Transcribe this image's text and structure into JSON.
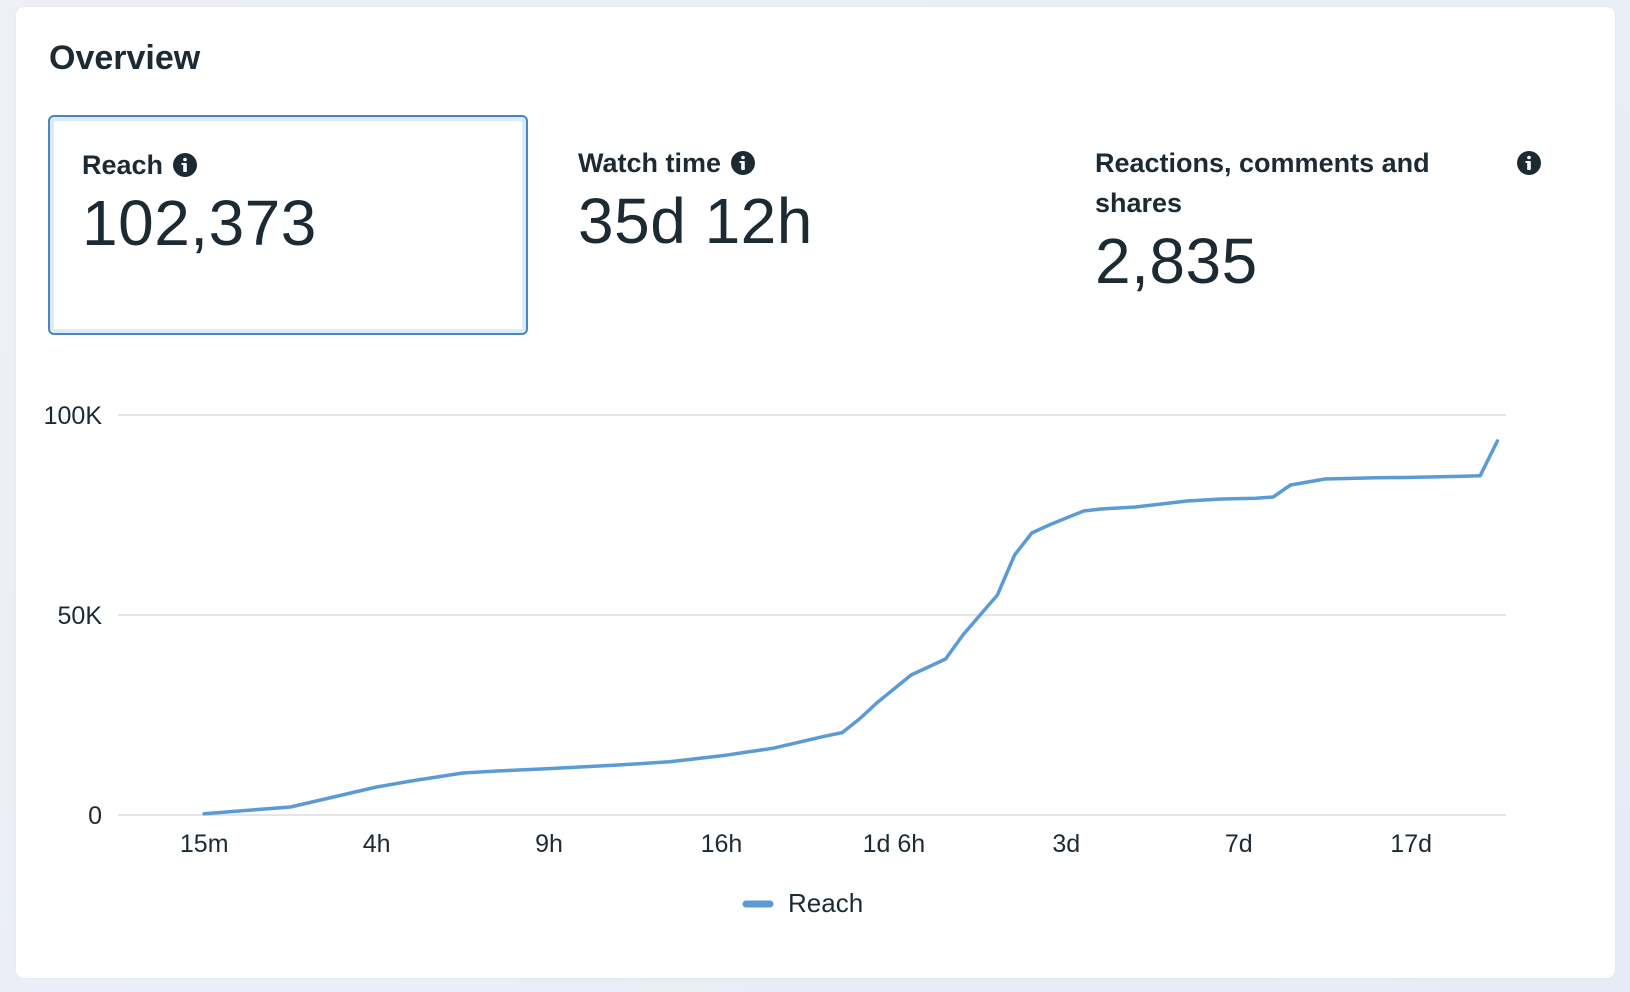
{
  "overview": {
    "title": "Overview",
    "metrics": [
      {
        "label": "Reach",
        "value": "102,373",
        "selected": true
      },
      {
        "label": "Watch time",
        "value": "35d 12h",
        "selected": false
      },
      {
        "label": "Reactions, comments and shares",
        "value": "2,835",
        "selected": false
      }
    ]
  },
  "colors": {
    "series": "#5b9bd5",
    "grid": "#dadde1",
    "selected_border": "#4a86c5"
  },
  "chart_data": {
    "type": "line",
    "title": "",
    "xlabel": "",
    "ylabel": "",
    "ylim": [
      0,
      100000
    ],
    "y_ticks": [
      {
        "value": 0,
        "label": "0"
      },
      {
        "value": 50000,
        "label": "50K"
      },
      {
        "value": 100000,
        "label": "100K"
      }
    ],
    "x_range": [
      -0.5,
      7.55
    ],
    "x_ticks": [
      {
        "pos": 0,
        "label": "15m"
      },
      {
        "pos": 1,
        "label": "4h"
      },
      {
        "pos": 2,
        "label": "9h"
      },
      {
        "pos": 3,
        "label": "16h"
      },
      {
        "pos": 4,
        "label": "1d 6h"
      },
      {
        "pos": 5,
        "label": "3d"
      },
      {
        "pos": 6,
        "label": "7d"
      },
      {
        "pos": 7,
        "label": "17d"
      }
    ],
    "legend": "bottom-center",
    "grid": true,
    "series": [
      {
        "name": "Reach",
        "x": [
          0,
          0.2,
          0.5,
          0.7,
          1.0,
          1.2,
          1.5,
          1.7,
          2.0,
          2.4,
          2.7,
          3.0,
          3.3,
          3.5,
          3.6,
          3.7,
          3.8,
          3.9,
          4.0,
          4.1,
          4.3,
          4.4,
          4.5,
          4.6,
          4.7,
          4.8,
          4.9,
          5.1,
          5.2,
          5.4,
          5.6,
          5.7,
          5.9,
          6.1,
          6.2,
          6.3,
          6.5,
          6.8,
          7.0,
          7.3,
          7.4,
          7.5
        ],
        "values": [
          300,
          1000,
          2000,
          4000,
          7000,
          8500,
          10500,
          11000,
          11600,
          12500,
          13300,
          14800,
          16700,
          18700,
          19700,
          20600,
          24000,
          28000,
          31500,
          35000,
          39000,
          45000,
          50000,
          55000,
          65000,
          70500,
          72500,
          76000,
          76500,
          77000,
          78000,
          78500,
          79000,
          79200,
          79500,
          82500,
          84000,
          84300,
          84400,
          84700,
          84800,
          93500
        ]
      }
    ]
  }
}
